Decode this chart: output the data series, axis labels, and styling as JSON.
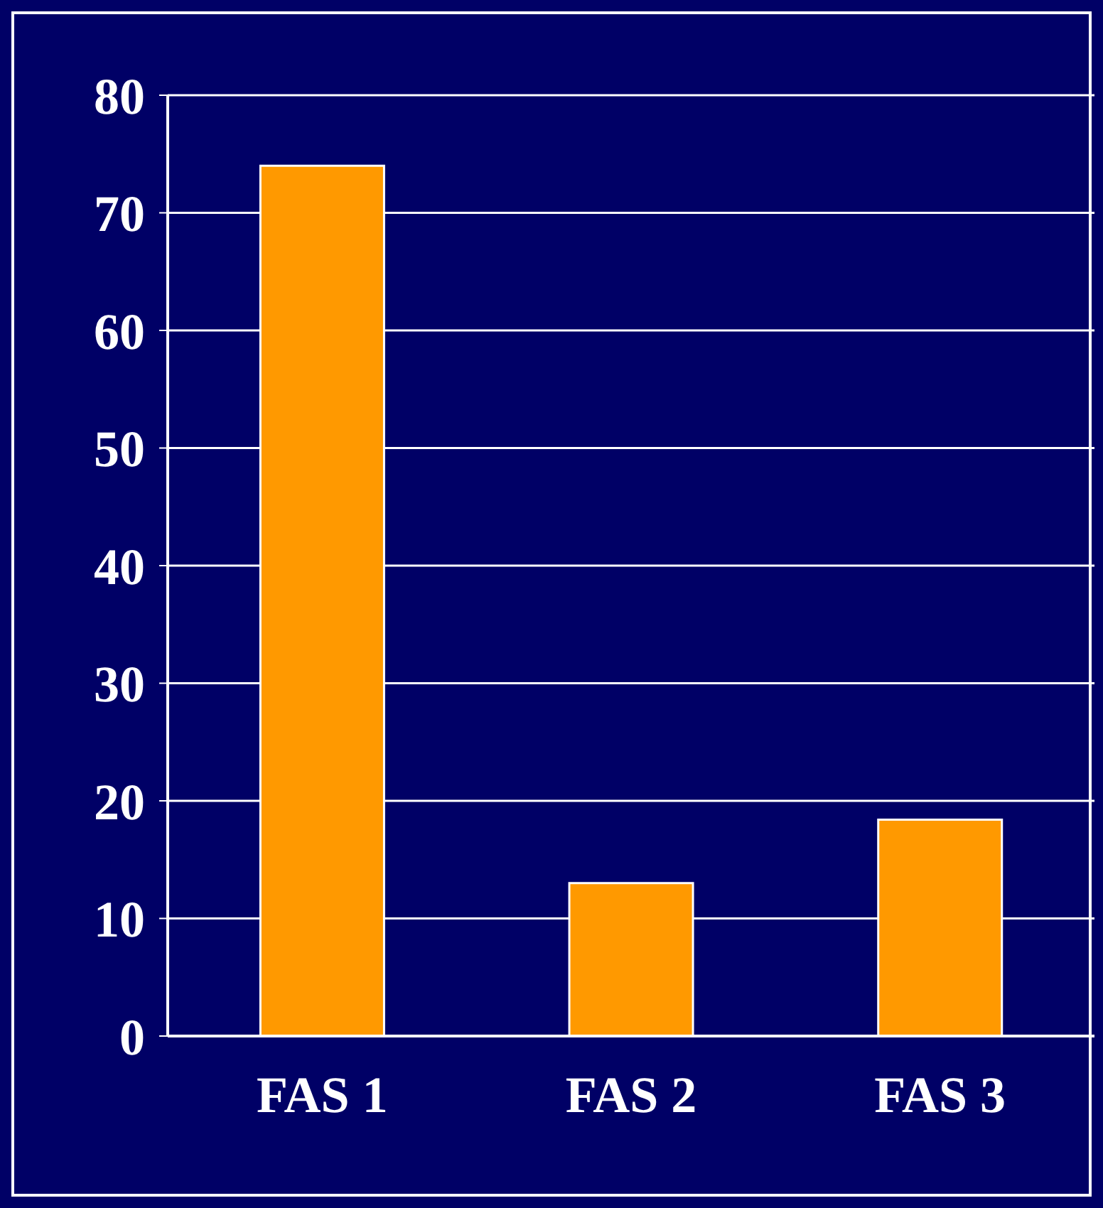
{
  "chart_data": {
    "type": "bar",
    "categories": [
      "FAS 1",
      "FAS 2",
      "FAS 3"
    ],
    "values": [
      74,
      13,
      18.4
    ],
    "color": "#ff9900",
    "ylim": [
      0,
      80
    ],
    "yticks": [
      0,
      10,
      20,
      30,
      40,
      50,
      60,
      70,
      80
    ],
    "grid": "y"
  }
}
